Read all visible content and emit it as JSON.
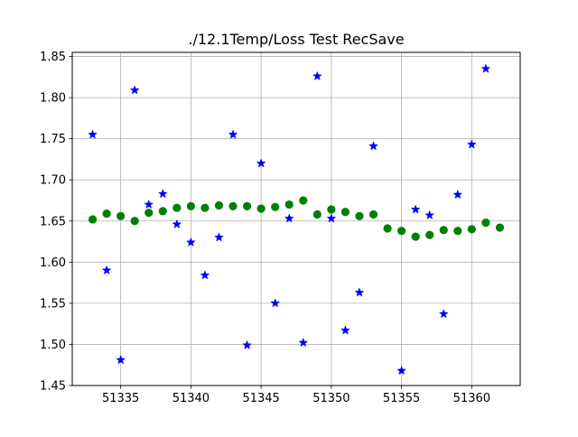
{
  "chart_data": {
    "type": "scatter",
    "title": "./12.1Temp/Loss Test RecSave",
    "xlabel": "",
    "ylabel": "",
    "xlim": [
      51331.55,
      51363.45
    ],
    "ylim": [
      1.45,
      1.855
    ],
    "x_ticks": [
      51335,
      51340,
      51345,
      51350,
      51355,
      51360
    ],
    "x_tick_labels": [
      "51335",
      "51340",
      "51345",
      "51350",
      "51355",
      "51360"
    ],
    "y_ticks": [
      1.45,
      1.5,
      1.55,
      1.6,
      1.65,
      1.7,
      1.75,
      1.8,
      1.85
    ],
    "y_tick_labels": [
      "1.45",
      "1.50",
      "1.55",
      "1.60",
      "1.65",
      "1.70",
      "1.75",
      "1.80",
      "1.85"
    ],
    "grid": true,
    "series": [
      {
        "marker": "star",
        "color": "#0000ff",
        "x": [
          51333,
          51334,
          51335,
          51336,
          51337,
          51338,
          51339,
          51340,
          51341,
          51342,
          51343,
          51344,
          51345,
          51346,
          51347,
          51348,
          51349,
          51350,
          51351,
          51352,
          51353,
          51355,
          51356,
          51357,
          51358,
          51359,
          51360,
          51361
        ],
        "y": [
          1.755,
          1.59,
          1.481,
          1.809,
          1.67,
          1.683,
          1.646,
          1.624,
          1.584,
          1.63,
          1.755,
          1.499,
          1.72,
          1.55,
          1.653,
          1.502,
          1.826,
          1.653,
          1.517,
          1.563,
          1.741,
          1.468,
          1.664,
          1.657,
          1.537,
          1.682,
          1.743,
          1.835
        ]
      },
      {
        "marker": "circle",
        "color": "#008000",
        "x": [
          51333,
          51334,
          51335,
          51336,
          51337,
          51338,
          51339,
          51340,
          51341,
          51342,
          51343,
          51344,
          51345,
          51346,
          51347,
          51348,
          51349,
          51350,
          51351,
          51352,
          51353,
          51354,
          51355,
          51356,
          51357,
          51358,
          51359,
          51360,
          51361,
          51362
        ],
        "y": [
          1.652,
          1.659,
          1.656,
          1.65,
          1.66,
          1.662,
          1.666,
          1.668,
          1.666,
          1.669,
          1.668,
          1.668,
          1.665,
          1.667,
          1.67,
          1.675,
          1.658,
          1.664,
          1.661,
          1.656,
          1.658,
          1.641,
          1.638,
          1.631,
          1.633,
          1.639,
          1.638,
          1.64,
          1.648,
          1.642
        ]
      }
    ]
  }
}
